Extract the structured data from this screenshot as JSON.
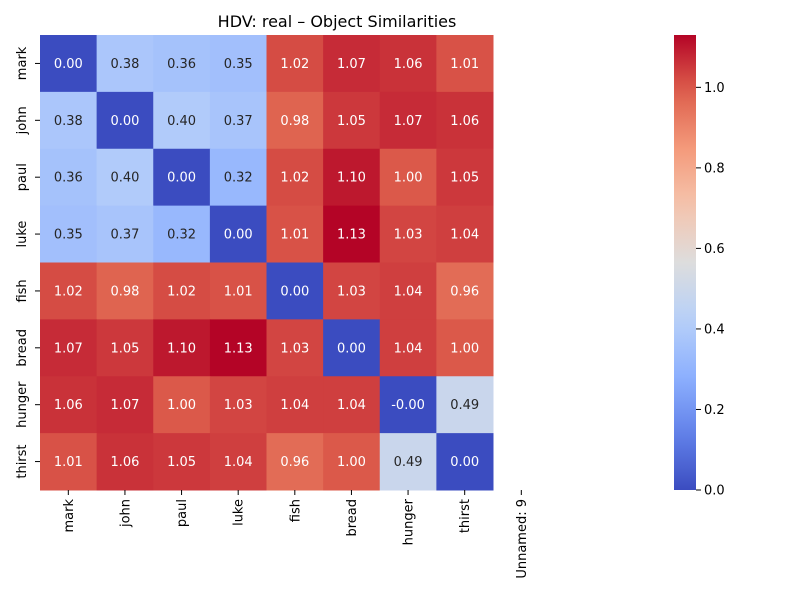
{
  "chart_data": {
    "type": "heatmap",
    "title": "HDV: real – Object Similarities",
    "row_labels": [
      "mark",
      "john",
      "paul",
      "luke",
      "fish",
      "bread",
      "hunger",
      "thirst"
    ],
    "col_labels": [
      "mark",
      "john",
      "paul",
      "luke",
      "fish",
      "bread",
      "hunger",
      "thirst",
      "Unnamed: 9"
    ],
    "values": [
      [
        0.0,
        0.38,
        0.36,
        0.35,
        1.02,
        1.07,
        1.06,
        1.01,
        null
      ],
      [
        0.38,
        0.0,
        0.4,
        0.37,
        0.98,
        1.05,
        1.07,
        1.06,
        null
      ],
      [
        0.36,
        0.4,
        0.0,
        0.32,
        1.02,
        1.1,
        1.0,
        1.05,
        null
      ],
      [
        0.35,
        0.37,
        0.32,
        0.0,
        1.01,
        1.13,
        1.03,
        1.04,
        null
      ],
      [
        1.02,
        0.98,
        1.02,
        1.01,
        0.0,
        1.03,
        1.04,
        0.96,
        null
      ],
      [
        1.07,
        1.05,
        1.1,
        1.13,
        1.03,
        0.0,
        1.04,
        1.0,
        null
      ],
      [
        1.06,
        1.07,
        1.0,
        1.03,
        1.04,
        1.04,
        -0.0,
        0.49,
        null
      ],
      [
        1.01,
        1.06,
        1.05,
        1.04,
        0.96,
        1.0,
        0.49,
        0.0,
        null
      ]
    ],
    "cell_text": [
      [
        "0.00",
        "0.38",
        "0.36",
        "0.35",
        "1.02",
        "1.07",
        "1.06",
        "1.01"
      ],
      [
        "0.38",
        "0.00",
        "0.40",
        "0.37",
        "0.98",
        "1.05",
        "1.07",
        "1.06"
      ],
      [
        "0.36",
        "0.40",
        "0.00",
        "0.32",
        "1.02",
        "1.10",
        "1.00",
        "1.05"
      ],
      [
        "0.35",
        "0.37",
        "0.32",
        "0.00",
        "1.01",
        "1.13",
        "1.03",
        "1.04"
      ],
      [
        "1.02",
        "0.98",
        "1.02",
        "1.01",
        "0.00",
        "1.03",
        "1.04",
        "0.96"
      ],
      [
        "1.07",
        "1.05",
        "1.10",
        "1.13",
        "1.03",
        "0.00",
        "1.04",
        "1.00"
      ],
      [
        "1.06",
        "1.07",
        "1.00",
        "1.03",
        "1.04",
        "1.04",
        "-0.00",
        "0.49"
      ],
      [
        "1.01",
        "1.06",
        "1.05",
        "1.04",
        "0.96",
        "1.00",
        "0.49",
        "0.00"
      ]
    ],
    "colormap": "coolwarm",
    "vmin": 0.0,
    "vmax": 1.13,
    "colorbar": {
      "ticks": [
        0.0,
        0.2,
        0.4,
        0.6,
        0.8,
        1.0
      ],
      "tick_labels": [
        "0.0",
        "0.2",
        "0.4",
        "0.6",
        "0.8",
        "1.0"
      ]
    },
    "grid": false,
    "legend": "colorbar-right"
  }
}
